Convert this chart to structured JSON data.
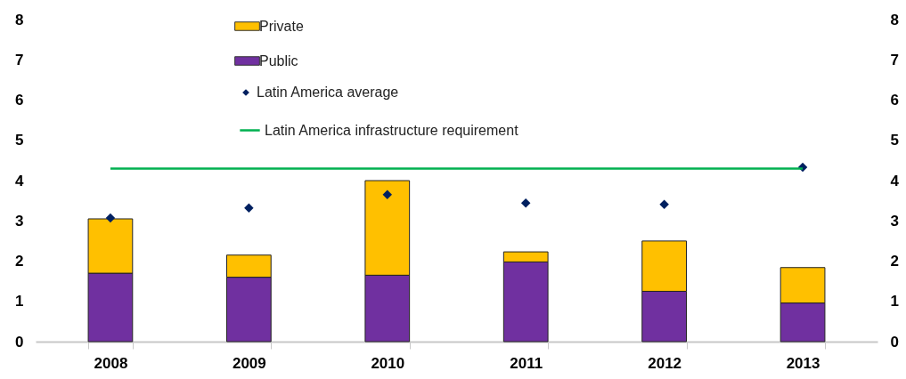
{
  "chart_data": {
    "type": "bar",
    "stacked": true,
    "categories": [
      "2008",
      "2009",
      "2010",
      "2011",
      "2012",
      "2013"
    ],
    "series": [
      {
        "name": "Public",
        "color": "#7030a0",
        "values": [
          1.7,
          1.6,
          1.65,
          1.98,
          1.25,
          0.96
        ]
      },
      {
        "name": "Private",
        "color": "#ffc000",
        "values": [
          1.35,
          0.55,
          2.35,
          0.25,
          1.25,
          0.88
        ]
      },
      {
        "name": "Latin America average",
        "type": "scatter",
        "color": "#002060",
        "values": [
          3.07,
          3.32,
          3.65,
          3.44,
          3.41,
          4.33
        ]
      },
      {
        "name": "Latin America infrastructure requirement",
        "type": "line",
        "marker": "none",
        "color": "#00b050",
        "values": [
          4.3,
          4.3,
          4.3,
          4.3,
          4.3,
          4.3
        ]
      }
    ],
    "ylim": [
      0,
      8
    ],
    "yticks": [
      0,
      1,
      2,
      3,
      4,
      5,
      6,
      7,
      8
    ],
    "y2lim": [
      0,
      8
    ],
    "y2ticks": [
      0,
      1,
      2,
      3,
      4,
      5,
      6,
      7,
      8
    ],
    "grid": false,
    "legend": "top",
    "marker": "diamond",
    "line_style": "solid"
  }
}
